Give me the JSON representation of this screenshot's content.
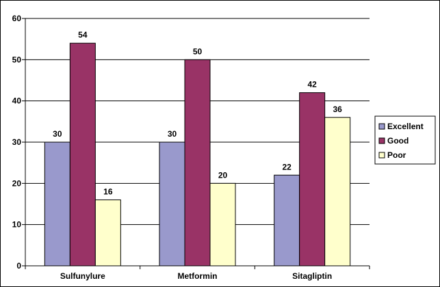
{
  "chart_data": {
    "type": "bar",
    "categories": [
      "Sulfunylure",
      "Metformin",
      "Sitagliptin"
    ],
    "series": [
      {
        "name": "Excellent",
        "values": [
          30,
          30,
          22
        ],
        "color": "#9999cc"
      },
      {
        "name": "Good",
        "values": [
          54,
          50,
          42
        ],
        "color": "#993366"
      },
      {
        "name": "Poor",
        "values": [
          16,
          20,
          36
        ],
        "color": "#ffffcc"
      }
    ],
    "ylim": [
      0,
      60
    ],
    "yticks": [
      0,
      10,
      20,
      30,
      40,
      50,
      60
    ],
    "grid": true,
    "legend_position": "right",
    "title": "",
    "xlabel": "",
    "ylabel": ""
  }
}
